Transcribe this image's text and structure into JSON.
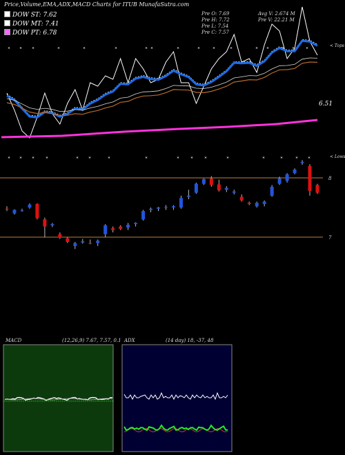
{
  "header": {
    "title": "Price,Volume,EMA,ADX,MACD Charts for ITUB MunafaSutra.com",
    "stats": {
      "pre_o": "Pre  O: 7.69",
      "pre_h": "Pre  H: 7.72",
      "pre_l": "Pre  L: 7.54",
      "pre_c": "Pre  C: 7.57",
      "avg_v": "Avg V: 2.674  M",
      "pre_v": "Pre  V: 22.21 M"
    }
  },
  "legend": [
    {
      "label": "DOW ST: 7.62",
      "color": "#ffffff"
    },
    {
      "label": "DOW MT: 7.41",
      "color": "#ffffff"
    },
    {
      "label": "DOW PT: 6.78",
      "color": "#ff66ff"
    }
  ],
  "panel1": {
    "top_label": "< Tops",
    "price_label": "6.51"
  },
  "panel2": {
    "bottom_label": "< Lows",
    "upper_level": "8",
    "lower_level": "7"
  },
  "macd": {
    "label": "MACD",
    "params": "(12,26,9) 7.67, 7.57, 0.1"
  },
  "adx": {
    "label": "ADX",
    "params": "(14  day) 18, -37, 48"
  },
  "colors": {
    "bull": "#2255dd",
    "bear": "#dd1111",
    "ema_short": "#1a6be8",
    "ema_long": "#ff33dd",
    "ema_mid": "#b86a2a",
    "macd_bg": "#0d3a0d",
    "adx_bg": "#000033",
    "level_line": "#c08040"
  },
  "chart_data": [
    {
      "type": "line",
      "panel": "price-ema",
      "series": [
        {
          "name": "DOW ST",
          "values": [
            7.45,
            7.2,
            6.9,
            6.8,
            7.1,
            7.45,
            7.15,
            7.0,
            7.3,
            7.5,
            7.2,
            7.6,
            7.55,
            7.7,
            7.65,
            7.95,
            7.6,
            7.95,
            7.8,
            7.6,
            7.65,
            7.9,
            8.05,
            7.6,
            7.6,
            7.3,
            7.55,
            7.8,
            7.95,
            8.05,
            8.3,
            7.9,
            7.95,
            7.75,
            8.15,
            8.45,
            8.35,
            7.95,
            8.1,
            8.7,
            8.2,
            8.0
          ]
        },
        {
          "name": "DOW MT"
        },
        {
          "name": "DOW PT"
        }
      ]
    },
    {
      "type": "bar",
      "panel": "candles",
      "ylim": [
        6.4,
        8.6
      ],
      "reference_lines": [
        8,
        7
      ],
      "candles": [
        [
          7.48,
          7.52,
          7.44,
          7.47
        ],
        [
          7.4,
          7.47,
          7.38,
          7.46
        ],
        [
          7.45,
          7.48,
          7.43,
          7.45
        ],
        [
          7.5,
          7.57,
          7.48,
          7.55
        ],
        [
          7.56,
          7.57,
          7.3,
          7.32
        ],
        [
          7.3,
          7.33,
          7.0,
          7.18
        ],
        [
          7.2,
          7.24,
          7.17,
          7.22
        ],
        [
          7.05,
          7.08,
          6.97,
          6.99
        ],
        [
          6.98,
          7.0,
          6.9,
          6.92
        ],
        [
          6.85,
          6.92,
          6.8,
          6.9
        ],
        [
          6.91,
          6.97,
          6.89,
          6.93
        ],
        [
          6.9,
          6.96,
          6.88,
          6.89
        ],
        [
          6.9,
          6.96,
          6.85,
          6.94
        ],
        [
          7.05,
          7.22,
          7.0,
          7.2
        ],
        [
          7.15,
          7.18,
          7.08,
          7.12
        ],
        [
          7.18,
          7.2,
          7.12,
          7.14
        ],
        [
          7.16,
          7.24,
          7.12,
          7.21
        ],
        [
          7.22,
          7.25,
          7.18,
          7.24
        ],
        [
          7.3,
          7.46,
          7.28,
          7.44
        ],
        [
          7.46,
          7.5,
          7.42,
          7.48
        ],
        [
          7.48,
          7.51,
          7.44,
          7.5
        ],
        [
          7.5,
          7.54,
          7.46,
          7.51
        ],
        [
          7.5,
          7.54,
          7.46,
          7.52
        ],
        [
          7.5,
          7.7,
          7.48,
          7.66
        ],
        [
          7.68,
          7.8,
          7.64,
          7.7
        ],
        [
          7.75,
          7.92,
          7.73,
          7.9
        ],
        [
          7.9,
          7.99,
          7.88,
          7.98
        ],
        [
          7.99,
          8.03,
          7.85,
          7.88
        ],
        [
          7.89,
          7.97,
          7.77,
          7.79
        ],
        [
          7.8,
          7.86,
          7.76,
          7.83
        ],
        [
          7.75,
          7.8,
          7.72,
          7.77
        ],
        [
          7.68,
          7.72,
          7.6,
          7.62
        ],
        [
          7.58,
          7.6,
          7.54,
          7.56
        ],
        [
          7.52,
          7.6,
          7.5,
          7.58
        ],
        [
          7.56,
          7.62,
          7.52,
          7.6
        ],
        [
          7.7,
          7.88,
          7.68,
          7.85
        ],
        [
          7.9,
          8.02,
          7.88,
          7.99
        ],
        [
          7.95,
          8.08,
          7.92,
          8.06
        ],
        [
          8.08,
          8.16,
          8.06,
          8.14
        ],
        [
          8.25,
          8.3,
          8.22,
          8.27
        ],
        [
          8.2,
          8.23,
          7.7,
          7.78
        ],
        [
          7.88,
          7.9,
          7.73,
          7.75
        ]
      ]
    },
    {
      "type": "line",
      "panel": "macd",
      "series": [
        {
          "name": "MACD"
        },
        {
          "name": "Signal"
        }
      ]
    },
    {
      "type": "line",
      "panel": "adx",
      "series": [
        {
          "name": "ADX"
        },
        {
          "name": "+DI"
        },
        {
          "name": "-DI"
        }
      ]
    }
  ]
}
